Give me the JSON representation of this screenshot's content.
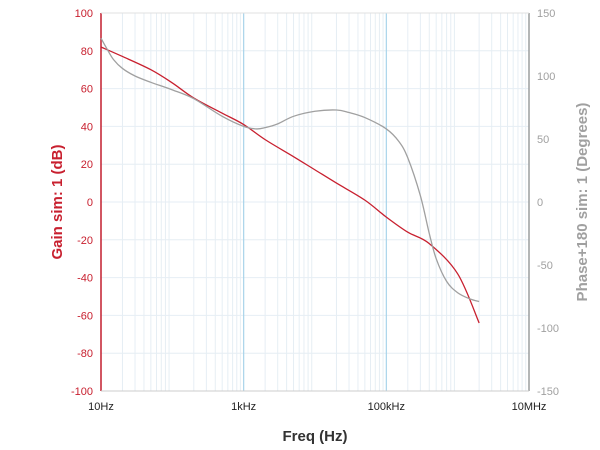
{
  "chart_data": {
    "type": "line",
    "title": "",
    "xlabel": "Freq (Hz)",
    "ylabel_left": "Gain sim: 1 (dB)",
    "ylabel_right": "Phase+180 sim: 1 (Degrees)",
    "x_scale": "log",
    "xlim": [
      10,
      10000000
    ],
    "ylim_left": [
      -100,
      100
    ],
    "ylim_right": [
      -150,
      150
    ],
    "x_ticks": [
      10,
      1000,
      100000,
      10000000
    ],
    "x_tick_labels": [
      "10Hz",
      "1kHz",
      "100kHz",
      "10MHz"
    ],
    "y_ticks_left": [
      100,
      80,
      60,
      40,
      20,
      0,
      -20,
      -40,
      -60,
      -80,
      -100
    ],
    "y_ticks_right": [
      150,
      100,
      50,
      0,
      -50,
      -100,
      -150
    ],
    "grid": true,
    "colors": {
      "gain": "#c8202f",
      "phase": "#a0a0a0",
      "major_grid": "#a8d4ea",
      "minor_grid": "#e6eef4",
      "left_axis_text": "#c8202f",
      "right_axis_text": "#a0a0a0"
    },
    "series": [
      {
        "axis": "left",
        "x": [
          10,
          20,
          50,
          100,
          200,
          500,
          1000,
          2000,
          5000,
          10000,
          20000,
          50000,
          100000,
          200000,
          400000,
          1000000,
          2000000
        ],
        "values": [
          82,
          77,
          70,
          63,
          55,
          47,
          41,
          33,
          24,
          17,
          10,
          1,
          -8,
          -16,
          -22,
          -38,
          -64
        ]
      },
      {
        "axis": "right",
        "x": [
          10,
          12,
          15,
          20,
          30,
          50,
          100,
          200,
          500,
          1000,
          1500,
          2000,
          3000,
          5000,
          10000,
          20000,
          30000,
          50000,
          100000,
          150000,
          200000,
          300000,
          400000,
          500000,
          700000,
          1000000,
          1500000,
          2000000
        ],
        "values": [
          130,
          122,
          113,
          106,
          100,
          95,
          89,
          82,
          68,
          60,
          58,
          59,
          62,
          68,
          72,
          73,
          71,
          67,
          58,
          48,
          35,
          5,
          -25,
          -45,
          -63,
          -72,
          -77,
          -79
        ]
      }
    ]
  }
}
